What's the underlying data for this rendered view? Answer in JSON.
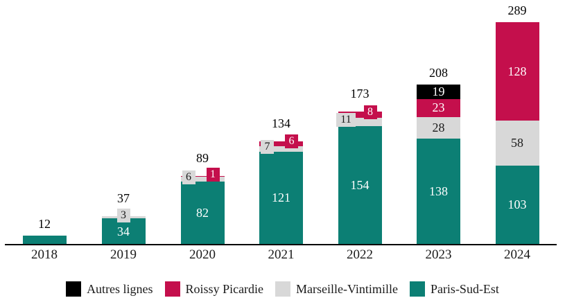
{
  "chart_data": {
    "type": "bar",
    "stacked": true,
    "title": "",
    "xlabel": "",
    "ylabel": "",
    "grid": false,
    "legend_position": "bottom",
    "ylim": [
      0,
      289
    ],
    "categories": [
      "2018",
      "2019",
      "2020",
      "2021",
      "2022",
      "2023",
      "2024"
    ],
    "series": [
      {
        "name": "Paris-Sud-Est",
        "color": "#0c7f74",
        "label_color": "#ffffff",
        "values": [
          12,
          34,
          82,
          121,
          154,
          138,
          103
        ]
      },
      {
        "name": "Marseille-Vintimille",
        "color": "#d8d8d8",
        "label_color": "#1a1a1a",
        "values": [
          0,
          3,
          6,
          7,
          11,
          28,
          58
        ]
      },
      {
        "name": "Roissy Picardie",
        "color": "#c40f4c",
        "label_color": "#ffffff",
        "values": [
          0,
          0,
          1,
          6,
          8,
          23,
          128
        ]
      },
      {
        "name": "Autres lignes",
        "color": "#000000",
        "label_color": "#ffffff",
        "values": [
          0,
          0,
          0,
          0,
          0,
          19,
          0
        ]
      }
    ],
    "totals": [
      12,
      37,
      89,
      134,
      173,
      208,
      289
    ],
    "legend": [
      {
        "label": "Autres lignes",
        "color": "#000000"
      },
      {
        "label": "Roissy Picardie",
        "color": "#c40f4c"
      },
      {
        "label": "Marseille-Vintimille",
        "color": "#d8d8d8"
      },
      {
        "label": "Paris-Sud-Est",
        "color": "#0c7f74"
      }
    ]
  }
}
